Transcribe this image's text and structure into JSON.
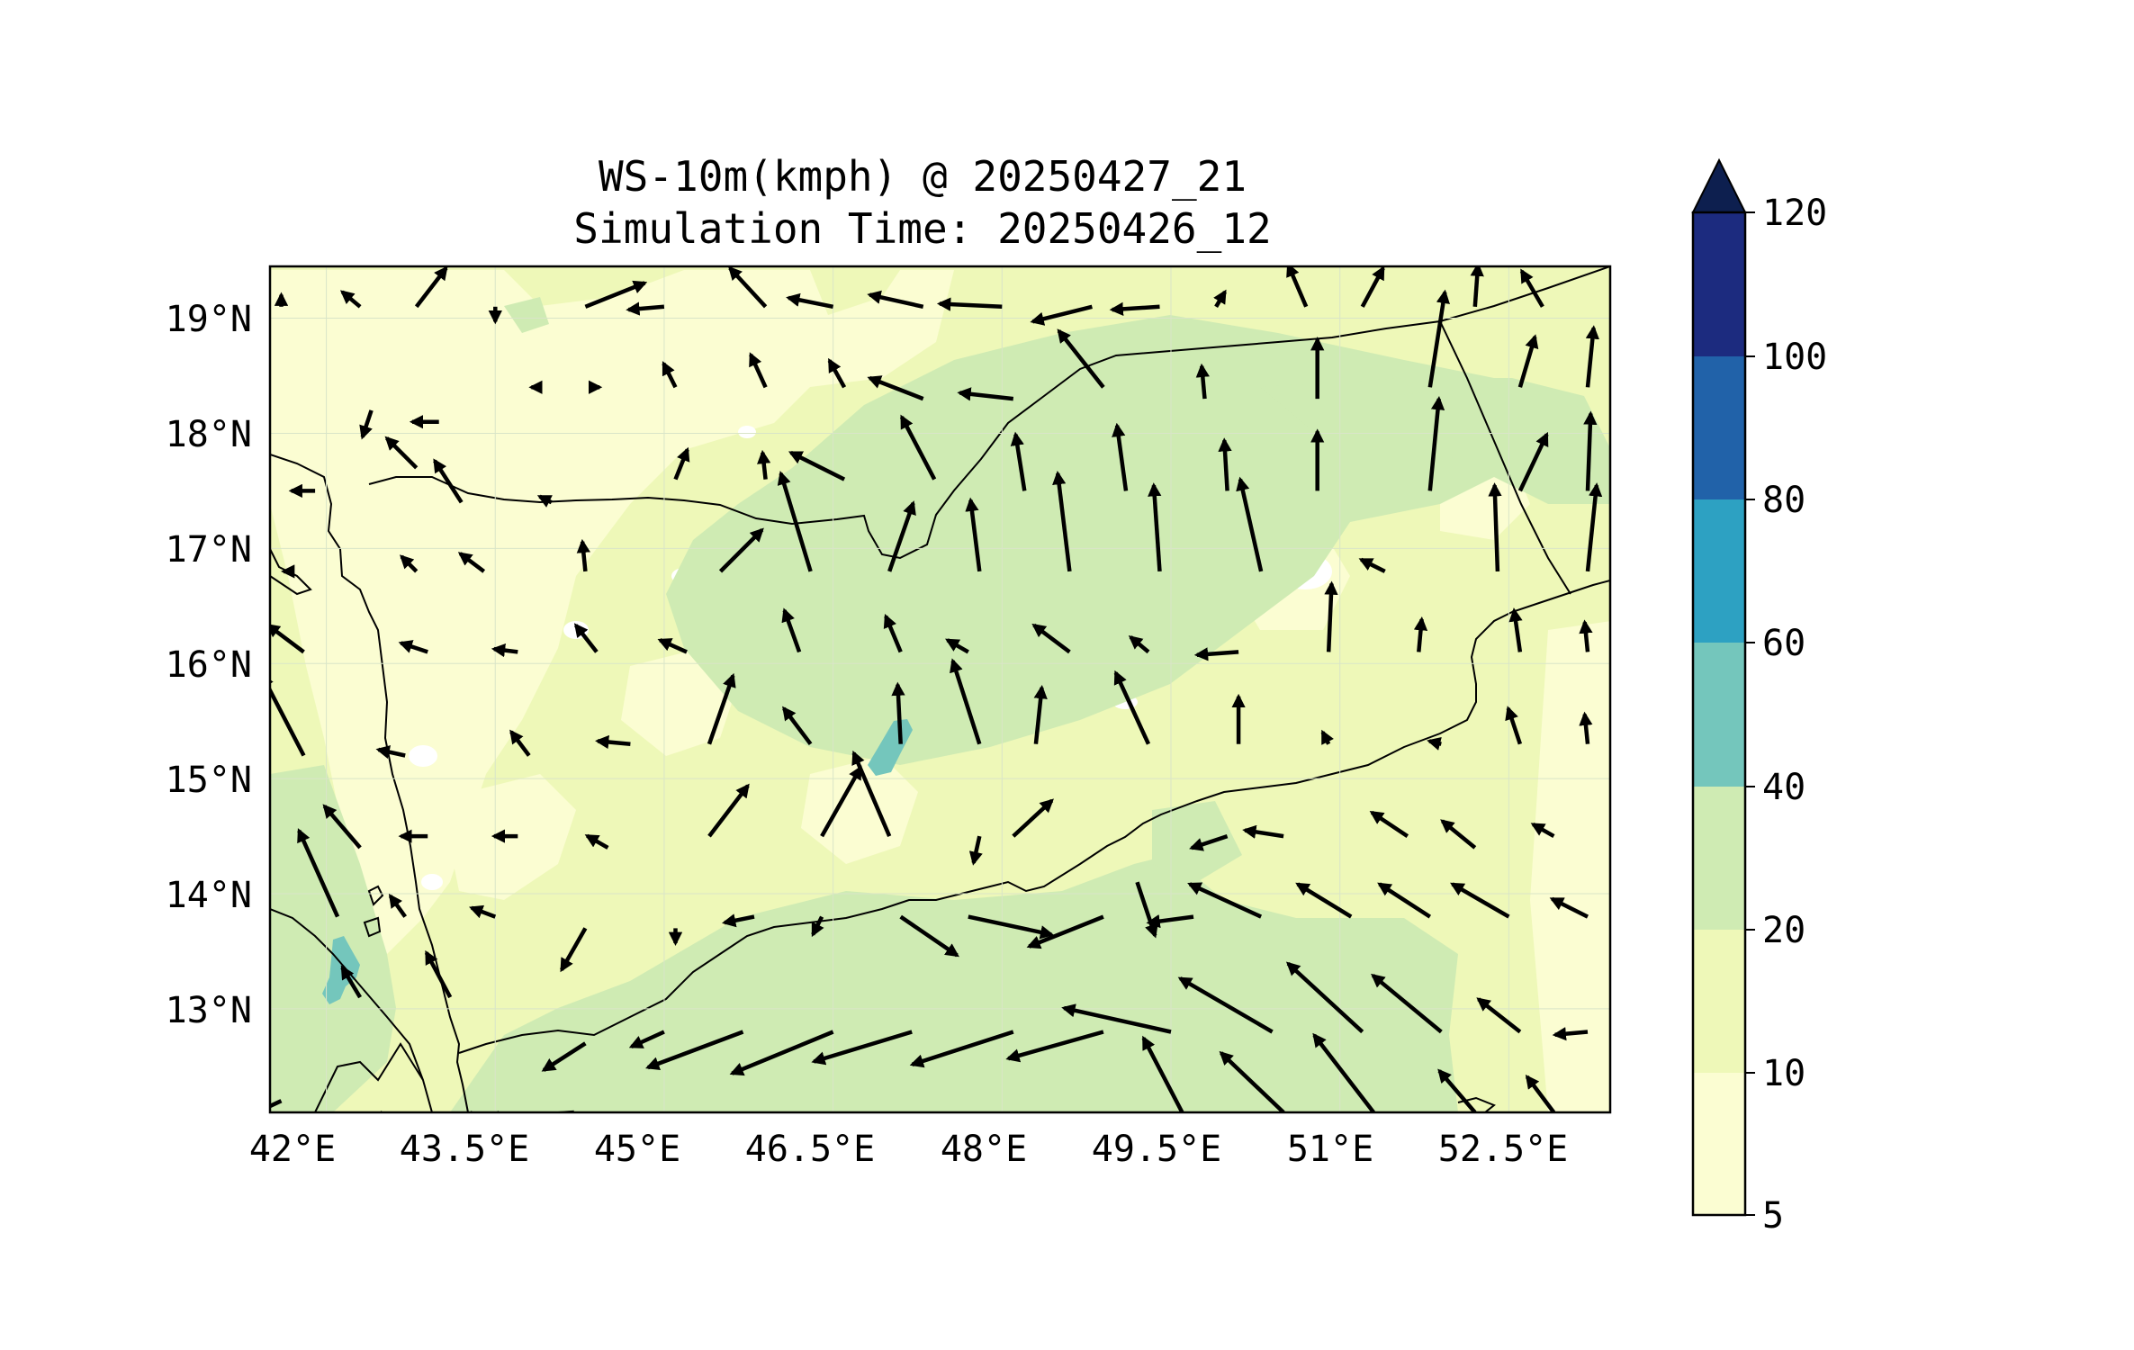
{
  "title": "WS-10m(kmph) @ 20250427_21",
  "subtitle": "Simulation Time: 20250426_12",
  "map": {
    "lon_range": [
      41.5,
      53.4
    ],
    "lat_range": [
      12.1,
      19.45
    ],
    "lon_tick_labels": [
      "42°E",
      "43.5°E",
      "45°E",
      "46.5°E",
      "48°E",
      "49.5°E",
      "51°E",
      "52.5°E"
    ],
    "lat_tick_labels": [
      "19°N",
      "18°N",
      "17°N",
      "16°N",
      "15°N",
      "14°N",
      "13°N"
    ],
    "fill_colors": {
      "5-10": "#fbfdd2",
      "10-20": "#eef8b8",
      "20-40": "#cfebb3",
      "40-60": "#74c6bc",
      "60-80": "#2da1c2",
      "80-100": "#2162a9",
      "100-120": "#1c2b7f",
      ">120": "#0d1f4f"
    },
    "line_color": "#000000"
  },
  "colorbar": {
    "levels": [
      "5",
      "10",
      "20",
      "40",
      "60",
      "80",
      "100",
      "120"
    ],
    "colors": [
      "#fbfdd2",
      "#eef8b8",
      "#cfebb3",
      "#74c6bc",
      "#2da1c2",
      "#2162a9",
      "#1c2b7f"
    ],
    "extend_color": "#0d1f4f",
    "extend": "max"
  },
  "chart_data": {
    "type": "vector-field",
    "variable": "WS-10m(kmph)",
    "levels": [
      5,
      10,
      20,
      40,
      60,
      80,
      100,
      120
    ],
    "arrows": [
      [
        41.6,
        19.1,
        0,
        4
      ],
      [
        42.3,
        19.1,
        -6,
        5
      ],
      [
        42.8,
        19.1,
        10,
        13
      ],
      [
        43.5,
        19.1,
        0,
        -5
      ],
      [
        44.3,
        19.1,
        20,
        8
      ],
      [
        45.0,
        19.1,
        -12,
        -1
      ],
      [
        45.9,
        19.1,
        -12,
        13
      ],
      [
        46.5,
        19.1,
        -15,
        3
      ],
      [
        47.3,
        19.1,
        -18,
        4
      ],
      [
        48.0,
        19.1,
        -21,
        1
      ],
      [
        48.8,
        19.1,
        -20,
        -5
      ],
      [
        49.4,
        19.1,
        -16,
        -1
      ],
      [
        49.9,
        19.1,
        3,
        5
      ],
      [
        50.7,
        19.1,
        -6,
        14
      ],
      [
        51.2,
        19.1,
        7,
        13
      ],
      [
        52.2,
        19.1,
        1,
        14
      ],
      [
        52.8,
        19.1,
        -7,
        12
      ],
      [
        42.4,
        18.2,
        -3,
        -9
      ],
      [
        43.0,
        18.1,
        -9,
        0
      ],
      [
        43.9,
        18.4,
        -3,
        0
      ],
      [
        44.4,
        18.4,
        1,
        0
      ],
      [
        45.1,
        18.4,
        -4,
        8
      ],
      [
        45.9,
        18.4,
        -5,
        11
      ],
      [
        46.6,
        18.4,
        -5,
        9
      ],
      [
        47.3,
        18.3,
        -18,
        7
      ],
      [
        48.1,
        18.3,
        -18,
        2
      ],
      [
        48.9,
        18.4,
        -15,
        19
      ],
      [
        49.8,
        18.3,
        -1,
        11
      ],
      [
        50.8,
        18.3,
        0,
        20
      ],
      [
        51.8,
        18.4,
        5,
        32
      ],
      [
        52.6,
        18.4,
        5,
        17
      ],
      [
        53.2,
        18.4,
        2,
        20
      ],
      [
        41.9,
        17.5,
        -8,
        0
      ],
      [
        42.8,
        17.7,
        -10,
        10
      ],
      [
        43.2,
        17.4,
        -9,
        14
      ],
      [
        44.0,
        17.4,
        -4,
        2
      ],
      [
        45.1,
        17.6,
        4,
        10
      ],
      [
        45.9,
        17.6,
        -1,
        9
      ],
      [
        46.6,
        17.6,
        -18,
        9
      ],
      [
        47.4,
        17.6,
        -11,
        21
      ],
      [
        48.2,
        17.5,
        -3,
        19
      ],
      [
        49.1,
        17.5,
        -3,
        22
      ],
      [
        50.0,
        17.5,
        -1,
        17
      ],
      [
        50.8,
        17.5,
        0,
        20
      ],
      [
        51.8,
        17.5,
        3,
        31
      ],
      [
        52.6,
        17.5,
        9,
        19
      ],
      [
        53.2,
        17.5,
        1,
        26
      ],
      [
        41.7,
        16.8,
        -3,
        0
      ],
      [
        42.8,
        16.8,
        -5,
        5
      ],
      [
        43.4,
        16.8,
        -8,
        6
      ],
      [
        44.3,
        16.8,
        -1,
        10
      ],
      [
        45.5,
        16.8,
        14,
        14
      ],
      [
        46.3,
        16.8,
        -10,
        33
      ],
      [
        47.0,
        16.8,
        8,
        23
      ],
      [
        47.8,
        16.8,
        -3,
        24
      ],
      [
        48.6,
        16.8,
        -4,
        33
      ],
      [
        49.4,
        16.8,
        -2,
        29
      ],
      [
        50.3,
        16.8,
        -7,
        31
      ],
      [
        51.4,
        16.8,
        -8,
        4
      ],
      [
        52.4,
        16.8,
        -1,
        29
      ],
      [
        53.2,
        16.8,
        3,
        29
      ],
      [
        41.8,
        16.1,
        -12,
        9
      ],
      [
        42.9,
        16.1,
        -9,
        3
      ],
      [
        43.7,
        16.1,
        -8,
        1
      ],
      [
        44.4,
        16.1,
        -7,
        9
      ],
      [
        45.2,
        16.1,
        -9,
        4
      ],
      [
        46.2,
        16.1,
        -5,
        14
      ],
      [
        47.1,
        16.1,
        -5,
        12
      ],
      [
        47.7,
        16.1,
        -7,
        4
      ],
      [
        48.6,
        16.1,
        -12,
        9
      ],
      [
        49.3,
        16.1,
        -6,
        5
      ],
      [
        50.1,
        16.1,
        -14,
        -1
      ],
      [
        50.9,
        16.1,
        1,
        23
      ],
      [
        51.7,
        16.1,
        1,
        11
      ],
      [
        52.6,
        16.1,
        -2,
        14
      ],
      [
        53.2,
        16.1,
        -1,
        10
      ],
      [
        41.8,
        15.2,
        -14,
        27
      ],
      [
        42.7,
        15.2,
        -9,
        2
      ],
      [
        43.8,
        15.2,
        -6,
        8
      ],
      [
        44.7,
        15.3,
        -11,
        1
      ],
      [
        45.4,
        15.3,
        8,
        23
      ],
      [
        46.3,
        15.3,
        -9,
        12
      ],
      [
        47.1,
        15.3,
        -1,
        20
      ],
      [
        47.8,
        15.3,
        -9,
        28
      ],
      [
        48.3,
        15.3,
        2,
        19
      ],
      [
        49.3,
        15.3,
        -11,
        24
      ],
      [
        50.1,
        15.3,
        0,
        16
      ],
      [
        50.9,
        15.3,
        -2,
        4
      ],
      [
        51.9,
        15.3,
        -4,
        1
      ],
      [
        52.6,
        15.3,
        -4,
        12
      ],
      [
        53.2,
        15.3,
        -1,
        10
      ],
      [
        42.3,
        14.4,
        -12,
        14
      ],
      [
        42.9,
        14.5,
        -9,
        0
      ],
      [
        43.7,
        14.5,
        -8,
        0
      ],
      [
        44.5,
        14.4,
        -7,
        4
      ],
      [
        45.4,
        14.5,
        13,
        17
      ],
      [
        46.4,
        14.5,
        13,
        23
      ],
      [
        47.0,
        14.5,
        -12,
        28
      ],
      [
        47.8,
        14.5,
        -2,
        -9
      ],
      [
        48.1,
        14.5,
        13,
        12
      ],
      [
        49.2,
        14.1,
        6,
        -18
      ],
      [
        50.0,
        14.5,
        -12,
        -4
      ],
      [
        50.5,
        14.5,
        -13,
        2
      ],
      [
        51.6,
        14.5,
        -12,
        8
      ],
      [
        52.2,
        14.4,
        -11,
        9
      ],
      [
        52.9,
        14.5,
        -7,
        4
      ],
      [
        42.1,
        13.8,
        -13,
        29
      ],
      [
        42.7,
        13.8,
        -5,
        7
      ],
      [
        43.5,
        13.8,
        -8,
        3
      ],
      [
        44.3,
        13.7,
        -8,
        -14
      ],
      [
        45.1,
        13.7,
        0,
        -5
      ],
      [
        45.8,
        13.8,
        -10,
        -2
      ],
      [
        46.4,
        13.8,
        -3,
        -6
      ],
      [
        47.1,
        13.8,
        19,
        -13
      ],
      [
        47.7,
        13.8,
        28,
        -6
      ],
      [
        48.9,
        13.8,
        -25,
        -10
      ],
      [
        49.7,
        13.8,
        -15,
        -2
      ],
      [
        50.3,
        13.8,
        -24,
        11
      ],
      [
        51.1,
        13.8,
        -18,
        11
      ],
      [
        51.8,
        13.8,
        -17,
        11
      ],
      [
        52.5,
        13.8,
        -19,
        11
      ],
      [
        53.2,
        13.8,
        -12,
        6
      ],
      [
        42.3,
        13.1,
        -6,
        10
      ],
      [
        43.1,
        13.1,
        -8,
        15
      ],
      [
        44.3,
        12.7,
        -14,
        -9
      ],
      [
        45.0,
        12.8,
        -11,
        -5
      ],
      [
        45.7,
        12.8,
        -32,
        -12
      ],
      [
        46.5,
        12.8,
        -34,
        -14
      ],
      [
        47.2,
        12.8,
        -33,
        -10
      ],
      [
        48.1,
        12.8,
        -34,
        -11
      ],
      [
        48.9,
        12.8,
        -32,
        -9
      ],
      [
        49.5,
        12.8,
        -36,
        8
      ],
      [
        50.4,
        12.8,
        -31,
        18
      ],
      [
        51.2,
        12.8,
        -25,
        23
      ],
      [
        51.9,
        12.8,
        -23,
        19
      ],
      [
        52.6,
        12.8,
        -14,
        11
      ],
      [
        53.2,
        12.8,
        -11,
        -1
      ],
      [
        41.6,
        12.2,
        -39,
        -18
      ],
      [
        42.5,
        12.1,
        -31,
        -21
      ],
      [
        43.3,
        12.1,
        -27,
        -18
      ],
      [
        44.2,
        12.1,
        -29,
        -2
      ],
      [
        49.6,
        12.1,
        -13,
        25
      ],
      [
        50.5,
        12.1,
        -21,
        20
      ],
      [
        51.3,
        12.1,
        -20,
        26
      ],
      [
        52.2,
        12.1,
        -12,
        14
      ],
      [
        52.9,
        12.1,
        -9,
        12
      ]
    ]
  }
}
